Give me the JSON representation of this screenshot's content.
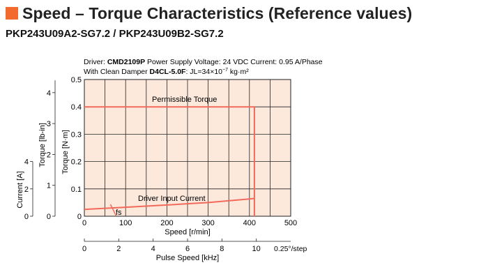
{
  "header": {
    "title": "Speed – Torque Characteristics (Reference values)",
    "accent_color": "#f26a2e"
  },
  "subtitle": "PKP243U09A2-SG7.2 / PKP243U09B2-SG7.2",
  "chart_data": {
    "type": "line",
    "notes": {
      "line1_prefix": "Driver: ",
      "line1_driver": "CMD2109P",
      "line1_rest": "  Power Supply Voltage: 24 VDC   Current: 0.95 A/Phase",
      "line2_prefix": "With Clean Damper ",
      "line2_damper": "D4CL-5.0F",
      "line2_rest": ": JL=34×10",
      "line2_exp": "−7",
      "line2_unit": " kg·m²"
    },
    "xlabel": "Speed [r/min]",
    "xlim": [
      0,
      500
    ],
    "x_ticks": [
      "0",
      "100",
      "200",
      "300",
      "400",
      "500"
    ],
    "ylabel_nm": "Torque [N·m]",
    "ylim": [
      0,
      0.5
    ],
    "y_ticks_nm": [
      "0",
      "0.1",
      "0.2",
      "0.3",
      "0.4",
      "0.5"
    ],
    "ylabel_lbin": "Torque [lb-in]",
    "lbin_ticks": [
      {
        "value": 0,
        "label": "0"
      },
      {
        "value": 1,
        "label": "1"
      },
      {
        "value": 2,
        "label": "2"
      },
      {
        "value": 3,
        "label": "3"
      },
      {
        "value": 4,
        "label": "4"
      }
    ],
    "ylabel_current": "Current [A]",
    "current_ticks": [
      {
        "value": 0,
        "label": "0"
      },
      {
        "value": 2,
        "label": "2"
      },
      {
        "value": 4,
        "label": "4"
      }
    ],
    "pulse_label": "Pulse Speed [kHz]",
    "pulse_ticks": [
      {
        "speed": 0,
        "label": "0"
      },
      {
        "speed": 83.3,
        "label": "2"
      },
      {
        "speed": 166.7,
        "label": "4"
      },
      {
        "speed": 250,
        "label": "6"
      },
      {
        "speed": 333.3,
        "label": "8"
      },
      {
        "speed": 416.7,
        "label": "10"
      }
    ],
    "pulse_unit": "0.25°/step",
    "grid": true,
    "background_color": "#fde8dc",
    "series": [
      {
        "name": "Permissible Torque",
        "color": "#f26a5a",
        "points": [
          [
            0,
            0.4
          ],
          [
            412,
            0.4
          ],
          [
            412,
            0
          ]
        ]
      },
      {
        "name": "Driver Input Current",
        "color": "#f26a5a",
        "points": [
          [
            0,
            0.025
          ],
          [
            100,
            0.033
          ],
          [
            200,
            0.041
          ],
          [
            300,
            0.05
          ],
          [
            400,
            0.063
          ],
          [
            412,
            0.065
          ]
        ]
      }
    ],
    "fs_label": "fs",
    "fs_marker_speed": 70
  }
}
